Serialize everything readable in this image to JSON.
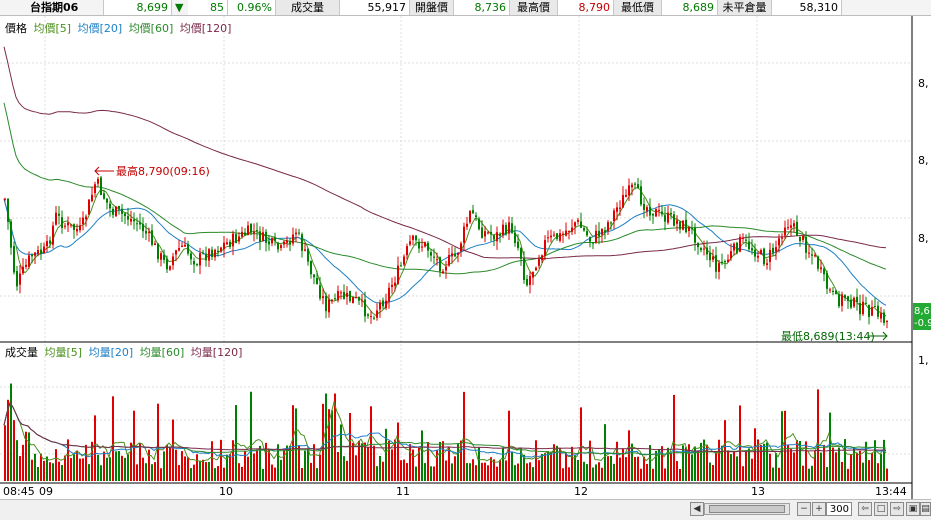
{
  "quote_bar": {
    "symbol": "台指期06",
    "last": "8,699",
    "change_arrow": "▼",
    "change": "85",
    "change_pct": "0.96%",
    "volume_label": "成交量",
    "volume": "55,917",
    "open_label": "開盤價",
    "open": "8,736",
    "high_label": "最高價",
    "high": "8,790",
    "low_label": "最低價",
    "low": "8,689",
    "oi_label": "未平倉量",
    "oi": "58,310"
  },
  "price_legend": {
    "price": "價格",
    "ma5": "均價[5]",
    "ma20": "均價[20]",
    "ma60": "均價[60]",
    "ma120": "均價[120]"
  },
  "volume_legend": {
    "volume": "成交量",
    "ma5": "均量[5]",
    "ma20": "均量[20]",
    "ma60": "均量[60]",
    "ma120": "均量[120]"
  },
  "annotations": {
    "high": "最高8,790(09:16)",
    "low": "最低8,689(13:44)"
  },
  "right_axis": {
    "price_ticks": [
      "8,",
      "8,",
      "8,"
    ],
    "price_tag_value": "8,6",
    "price_tag_pct": "-0.9",
    "volume_tick": "1,"
  },
  "time_axis": {
    "labels": [
      "08:45",
      "09",
      "10",
      "11",
      "12",
      "13",
      "13:44"
    ]
  },
  "toolbar": {
    "zoom_value": "300",
    "minus_icon": "minus-icon",
    "plus_icon": "plus-icon"
  },
  "colors": {
    "up": "#e00000",
    "down": "#008000",
    "ma5": "#4a8f1d",
    "ma20": "#1c7fc6",
    "ma60": "#2a8a2a",
    "ma120": "#7a2a4a",
    "tag_bg": "#22aa33"
  },
  "chart_data": {
    "type": "candlestick_with_volume",
    "session": {
      "start": "08:45",
      "end": "13:44"
    },
    "price": {
      "open": 8736,
      "high": 8790,
      "high_time": "09:16",
      "low": 8689,
      "low_time": "13:44",
      "last": 8699
    },
    "series": [
      {
        "name": "均價[5]"
      },
      {
        "name": "均價[20]"
      },
      {
        "name": "均價[60]"
      },
      {
        "name": "均價[120]"
      }
    ],
    "volume_series": [
      {
        "name": "均量[5]"
      },
      {
        "name": "均量[20]"
      },
      {
        "name": "均量[60]"
      },
      {
        "name": "均量[120]"
      }
    ]
  }
}
